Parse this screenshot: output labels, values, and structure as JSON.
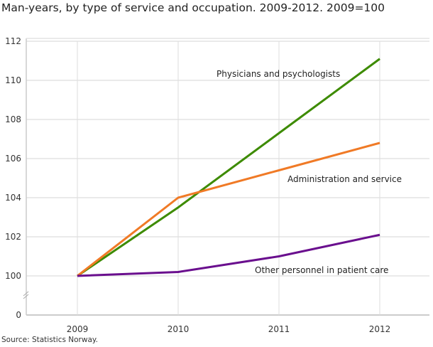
{
  "chart_data": {
    "type": "line",
    "title": "Man-years, by type of service and occupation. 2009-2012. 2009=100",
    "source": "Source: Statistics Norway.",
    "xlabel": "",
    "ylabel": "",
    "categories": [
      "2009",
      "2010",
      "2011",
      "2012"
    ],
    "y_ticks": [
      "0",
      "100",
      "102",
      "104",
      "106",
      "108",
      "110",
      "112"
    ],
    "ylim": [
      100,
      112
    ],
    "y_axis_break": true,
    "grid": true,
    "legend": "inline labels",
    "series": [
      {
        "name": "Physicians and psychologists",
        "color": "#3d8b00",
        "values": [
          100,
          103.5,
          107.3,
          111.1
        ]
      },
      {
        "name": "Administration and service",
        "color": "#f07a26",
        "values": [
          100,
          104.0,
          105.4,
          106.8
        ]
      },
      {
        "name": "Other personnel in patient care",
        "color": "#6a0f8e",
        "values": [
          100,
          100.2,
          101.0,
          102.1
        ]
      }
    ]
  }
}
